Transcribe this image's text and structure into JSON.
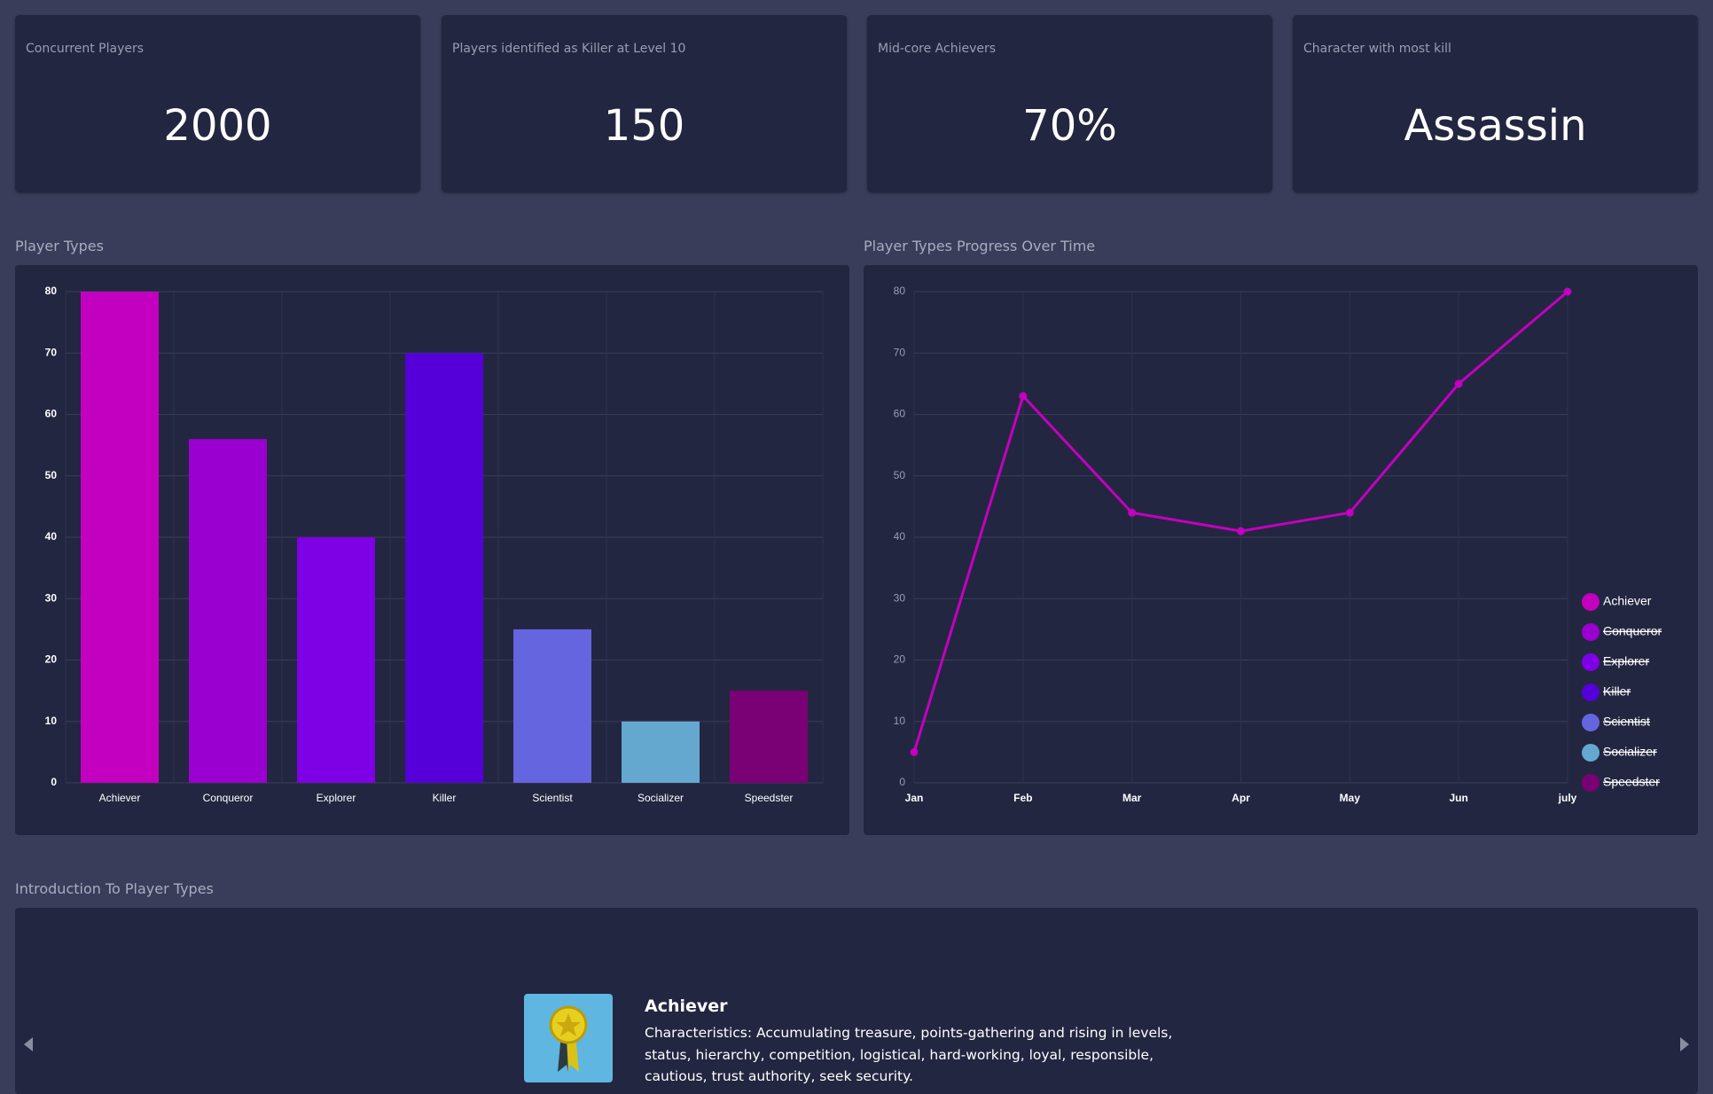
{
  "cards": [
    {
      "label": "Concurrent Players",
      "value": "2000"
    },
    {
      "label": "Players identified as Killer at Level 10",
      "value": "150"
    },
    {
      "label": "Mid-core Achievers",
      "value": "70%"
    },
    {
      "label": "Character with most kill",
      "value": "Assassin"
    }
  ],
  "chart_data": [
    {
      "type": "bar",
      "title": "Player Types",
      "categories": [
        "Achiever",
        "Conqueror",
        "Explorer",
        "Killer",
        "Scientist",
        "Socializer",
        "Speedster"
      ],
      "values": [
        80,
        56,
        40,
        70,
        25,
        10,
        15
      ],
      "colors": [
        "#c300c0",
        "#9a00d0",
        "#7e00e4",
        "#5500d8",
        "#6565e0",
        "#64a8d0",
        "#7a0075"
      ],
      "ylim": [
        0,
        80
      ],
      "yticks": [
        0,
        10,
        20,
        30,
        40,
        50,
        60,
        70,
        80
      ],
      "grid": true
    },
    {
      "type": "line",
      "title": "Player Types Progress Over Time",
      "categories": [
        "Jan",
        "Feb",
        "Mar",
        "Apr",
        "May",
        "Jun",
        "july"
      ],
      "series": [
        {
          "name": "Achiever",
          "color": "#c300c0",
          "values": [
            5,
            63,
            44,
            41,
            44,
            65,
            80
          ]
        },
        {
          "name": "Conqueror",
          "color": "#9a00d0",
          "hidden": true
        },
        {
          "name": "Explorer",
          "color": "#7e00e4",
          "hidden": true
        },
        {
          "name": "Killer",
          "color": "#5500d8",
          "hidden": true
        },
        {
          "name": "Scientist",
          "color": "#6565e0",
          "hidden": true
        },
        {
          "name": "Socializer",
          "color": "#64a8d0",
          "hidden": true
        },
        {
          "name": "Speedster",
          "color": "#7a0075",
          "hidden": true
        }
      ],
      "ylim": [
        0,
        80
      ],
      "yticks": [
        0,
        10,
        20,
        30,
        40,
        50,
        60,
        70,
        80
      ],
      "grid": true,
      "legend": "right"
    }
  ],
  "intro": {
    "title": "Introduction To Player Types",
    "slide_title": "Achiever",
    "slide_text": "Characteristics: Accumulating treasure, points-gathering and rising in levels, status, hierarchy, competition, logistical, hard-working, loyal, responsible, cautious, trust authority, seek security."
  }
}
